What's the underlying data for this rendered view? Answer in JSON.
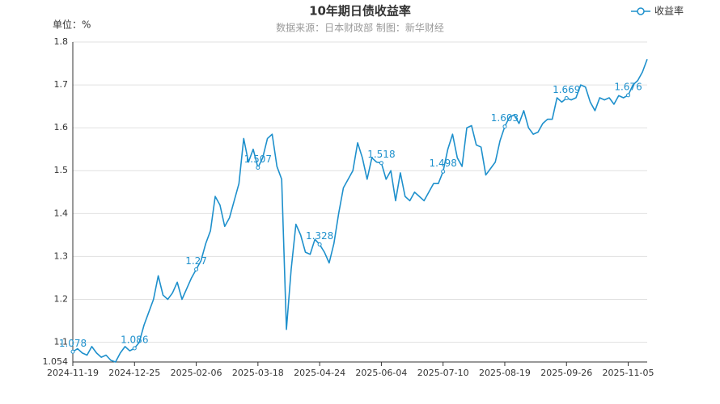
{
  "chart_data": {
    "type": "line",
    "title": "10年期日债收益率",
    "subtitle": "数据来源：日本财政部      制图：新华财经",
    "y_axis_label": "单位：%",
    "categories": [
      "2024-11-19",
      null,
      null,
      null,
      null,
      null,
      null,
      null,
      null,
      null,
      null,
      null,
      null,
      "2024-12-25",
      null,
      null,
      null,
      null,
      null,
      null,
      null,
      null,
      null,
      null,
      null,
      null,
      "2025-02-06",
      null,
      null,
      null,
      null,
      null,
      null,
      null,
      null,
      null,
      null,
      null,
      null,
      "2025-03-18",
      null,
      null,
      null,
      null,
      null,
      null,
      null,
      null,
      null,
      null,
      null,
      null,
      "2025-04-24",
      null,
      null,
      null,
      null,
      null,
      null,
      null,
      null,
      null,
      null,
      null,
      null,
      "2025-06-04",
      null,
      null,
      null,
      null,
      null,
      null,
      null,
      null,
      null,
      null,
      null,
      null,
      "2025-07-10",
      null,
      null,
      null,
      null,
      null,
      null,
      null,
      null,
      null,
      null,
      null,
      null,
      "2025-08-19",
      null,
      null,
      null,
      null,
      null,
      null,
      null,
      null,
      null,
      null,
      null,
      null,
      "2025-09-26",
      null,
      null,
      null,
      null,
      null,
      null,
      null,
      null,
      null,
      null,
      null,
      null,
      "2025-11-05",
      null,
      null,
      null,
      null
    ],
    "series": [
      {
        "name": "收益率",
        "color": "#1e90cc",
        "values": [
          1.078,
          1.085,
          1.075,
          1.07,
          1.09,
          1.075,
          1.065,
          1.07,
          1.058,
          1.054,
          1.075,
          1.09,
          1.08,
          1.086,
          1.1,
          1.14,
          1.17,
          1.2,
          1.255,
          1.21,
          1.2,
          1.215,
          1.24,
          1.2,
          1.225,
          1.25,
          1.27,
          1.29,
          1.33,
          1.36,
          1.44,
          1.42,
          1.37,
          1.39,
          1.43,
          1.47,
          1.575,
          1.52,
          1.55,
          1.507,
          1.53,
          1.575,
          1.585,
          1.51,
          1.48,
          1.13,
          1.27,
          1.375,
          1.35,
          1.31,
          1.305,
          1.34,
          1.328,
          1.31,
          1.285,
          1.33,
          1.4,
          1.46,
          1.48,
          1.5,
          1.565,
          1.53,
          1.48,
          1.53,
          1.52,
          1.518,
          1.48,
          1.5,
          1.43,
          1.495,
          1.44,
          1.43,
          1.45,
          1.44,
          1.43,
          1.45,
          1.47,
          1.47,
          1.498,
          1.55,
          1.585,
          1.53,
          1.51,
          1.6,
          1.605,
          1.56,
          1.555,
          1.49,
          1.505,
          1.52,
          1.57,
          1.603,
          1.625,
          1.63,
          1.61,
          1.64,
          1.6,
          1.585,
          1.59,
          1.61,
          1.62,
          1.62,
          1.67,
          1.66,
          1.669,
          1.665,
          1.67,
          1.7,
          1.695,
          1.66,
          1.64,
          1.67,
          1.665,
          1.67,
          1.655,
          1.675,
          1.67,
          1.676,
          1.7,
          1.71,
          1.73,
          1.76
        ]
      }
    ],
    "ylim": [
      1.054,
      1.8
    ],
    "yticks": [
      1.054,
      1.1,
      1.2,
      1.3,
      1.4,
      1.5,
      1.6,
      1.7,
      1.8
    ],
    "grid": true,
    "legend_position": "top-right"
  }
}
